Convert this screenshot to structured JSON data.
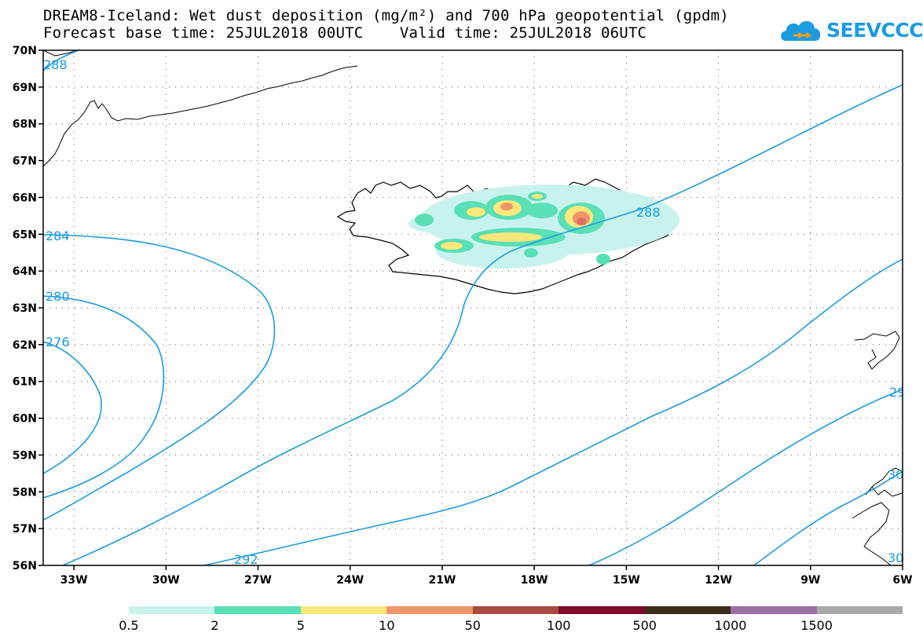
{
  "title": {
    "line1": "DREAM8-Iceland: Wet dust deposition (mg/m²) and 700 hPa geopotential (gpdm)",
    "line2": "Forecast base time: 25JUL2018 00UTC    Valid time: 25JUL2018 06UTC"
  },
  "logo": {
    "text": "SEEVCCC",
    "icon": "cloud-icon",
    "color": "#1c9be0"
  },
  "map": {
    "projection": "lat-lon",
    "lon_range": [
      -34,
      -6
    ],
    "lat_range": [
      56,
      70
    ],
    "lat_ticks": [
      "70N",
      "69N",
      "68N",
      "67N",
      "66N",
      "65N",
      "64N",
      "63N",
      "62N",
      "61N",
      "60N",
      "59N",
      "58N",
      "57N",
      "56N"
    ],
    "lon_ticks": [
      "33W",
      "30W",
      "27W",
      "24W",
      "21W",
      "18W",
      "15W",
      "12W",
      "9W",
      "6W"
    ],
    "contour_color": "#1c9be0",
    "contour_labels": [
      "288",
      "284",
      "280",
      "276",
      "292",
      "288",
      "29",
      "30",
      "30"
    ]
  },
  "colorbar": {
    "labels": [
      "0.5",
      "2",
      "5",
      "10",
      "50",
      "100",
      "500",
      "1000",
      "1500"
    ],
    "colors": [
      "#c8f3ec",
      "#5adfb6",
      "#fbe87a",
      "#ef9669",
      "#a84a3f",
      "#7e0a2c",
      "#3d2b1c",
      "#9b6ea3",
      "#a8a8a8"
    ]
  }
}
